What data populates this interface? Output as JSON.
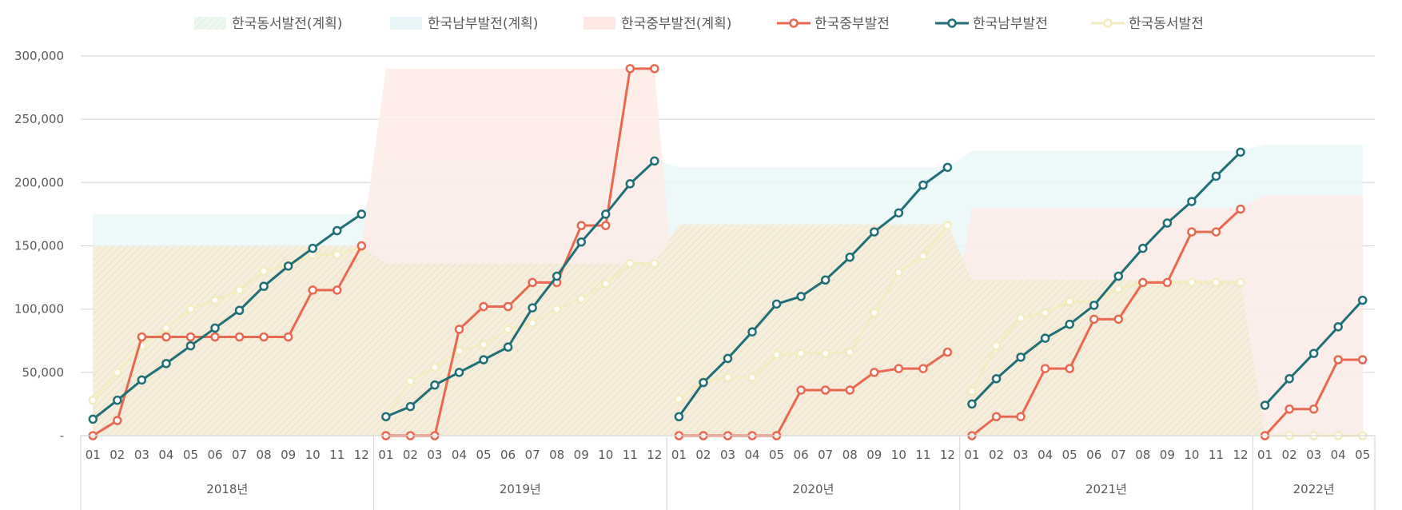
{
  "chart_data": {
    "type": "line",
    "legend_position": "top",
    "grid": true,
    "ylim": [
      0,
      300000
    ],
    "y_ticks": [
      "-",
      "50,000",
      "100,000",
      "150,000",
      "200,000",
      "250,000",
      "300,000"
    ],
    "y_tick_values": [
      0,
      50000,
      100000,
      150000,
      200000,
      250000,
      300000
    ],
    "years": [
      {
        "label": "2018년",
        "months": [
          "01",
          "02",
          "03",
          "04",
          "05",
          "06",
          "07",
          "08",
          "09",
          "10",
          "11",
          "12"
        ]
      },
      {
        "label": "2019년",
        "months": [
          "01",
          "02",
          "03",
          "04",
          "05",
          "06",
          "07",
          "08",
          "09",
          "10",
          "11",
          "12"
        ]
      },
      {
        "label": "2020년",
        "months": [
          "01",
          "02",
          "03",
          "04",
          "05",
          "06",
          "07",
          "08",
          "09",
          "10",
          "11",
          "12"
        ]
      },
      {
        "label": "2021년",
        "months": [
          "01",
          "02",
          "03",
          "04",
          "05",
          "06",
          "07",
          "08",
          "09",
          "10",
          "11",
          "12"
        ]
      },
      {
        "label": "2022년",
        "months": [
          "01",
          "02",
          "03",
          "04",
          "05"
        ]
      }
    ],
    "plan_series": [
      {
        "name": "한국동서발전(계획)",
        "color": "#f2ead3",
        "values": [
          150000,
          150000,
          150000,
          150000,
          150000,
          150000,
          150000,
          150000,
          150000,
          150000,
          150000,
          150000,
          136000,
          136000,
          136000,
          136000,
          136000,
          136000,
          136000,
          136000,
          136000,
          136000,
          136000,
          136000,
          167000,
          167000,
          167000,
          167000,
          167000,
          167000,
          167000,
          167000,
          167000,
          167000,
          167000,
          167000,
          123000,
          123000,
          123000,
          123000,
          123000,
          123000,
          123000,
          123000,
          123000,
          123000,
          123000,
          123000,
          0,
          0,
          0,
          0,
          0
        ]
      },
      {
        "name": "한국남부발전(계획)",
        "color": "#e8f6f7",
        "values": [
          175000,
          175000,
          175000,
          175000,
          175000,
          175000,
          175000,
          175000,
          175000,
          175000,
          175000,
          175000,
          218000,
          218000,
          218000,
          218000,
          218000,
          218000,
          218000,
          218000,
          218000,
          218000,
          218000,
          218000,
          212000,
          212000,
          212000,
          212000,
          212000,
          212000,
          212000,
          212000,
          212000,
          212000,
          212000,
          212000,
          225000,
          225000,
          225000,
          225000,
          225000,
          225000,
          225000,
          225000,
          225000,
          225000,
          225000,
          225000,
          230000,
          230000,
          230000,
          230000,
          230000
        ]
      },
      {
        "name": "한국중부발전(계획)",
        "color": "#fde9e4",
        "values": [
          150000,
          150000,
          150000,
          150000,
          150000,
          150000,
          150000,
          150000,
          150000,
          150000,
          150000,
          150000,
          290000,
          290000,
          290000,
          290000,
          290000,
          290000,
          290000,
          290000,
          290000,
          290000,
          290000,
          290000,
          66000,
          66000,
          66000,
          66000,
          66000,
          66000,
          66000,
          66000,
          66000,
          66000,
          66000,
          66000,
          180000,
          180000,
          180000,
          180000,
          180000,
          180000,
          180000,
          180000,
          180000,
          180000,
          180000,
          180000,
          190000,
          190000,
          190000,
          190000,
          190000
        ]
      }
    ],
    "series": [
      {
        "name": "한국중부발전",
        "color": "#e8694f",
        "values": [
          0,
          12000,
          78000,
          78000,
          78000,
          78000,
          78000,
          78000,
          78000,
          115000,
          115000,
          150000,
          0,
          0,
          0,
          84000,
          102000,
          102000,
          121000,
          121000,
          166000,
          166000,
          290000,
          290000,
          0,
          0,
          0,
          0,
          0,
          36000,
          36000,
          36000,
          50000,
          53000,
          53000,
          66000,
          0,
          15000,
          15000,
          53000,
          53000,
          92000,
          92000,
          121000,
          121000,
          161000,
          161000,
          179000,
          0,
          21000,
          21000,
          60000,
          60000
        ]
      },
      {
        "name": "한국남부발전",
        "color": "#1f6f77",
        "values": [
          13000,
          28000,
          44000,
          57000,
          71000,
          85000,
          99000,
          118000,
          134000,
          148000,
          162000,
          175000,
          15000,
          23000,
          40000,
          50000,
          60000,
          70000,
          101000,
          126000,
          153000,
          175000,
          199000,
          217000,
          15000,
          42000,
          61000,
          82000,
          104000,
          110000,
          123000,
          141000,
          161000,
          176000,
          198000,
          212000,
          25000,
          45000,
          62000,
          77000,
          88000,
          103000,
          126000,
          148000,
          168000,
          185000,
          205000,
          224000,
          24000,
          45000,
          65000,
          86000,
          107000
        ]
      },
      {
        "name": "한국동서발전",
        "color": "#f5efc4",
        "values": [
          28000,
          50000,
          71000,
          85000,
          100000,
          107000,
          115000,
          130000,
          135000,
          143000,
          143000,
          149000,
          15000,
          43000,
          54000,
          67000,
          72000,
          84000,
          89000,
          100000,
          108000,
          120000,
          136000,
          136000,
          29000,
          43000,
          46000,
          46000,
          64000,
          65000,
          65000,
          66000,
          97000,
          129000,
          142000,
          166000,
          35000,
          71000,
          93000,
          97000,
          106000,
          106000,
          116000,
          121000,
          121000,
          121000,
          121000,
          121000,
          0,
          0,
          0,
          0,
          0
        ]
      }
    ]
  }
}
